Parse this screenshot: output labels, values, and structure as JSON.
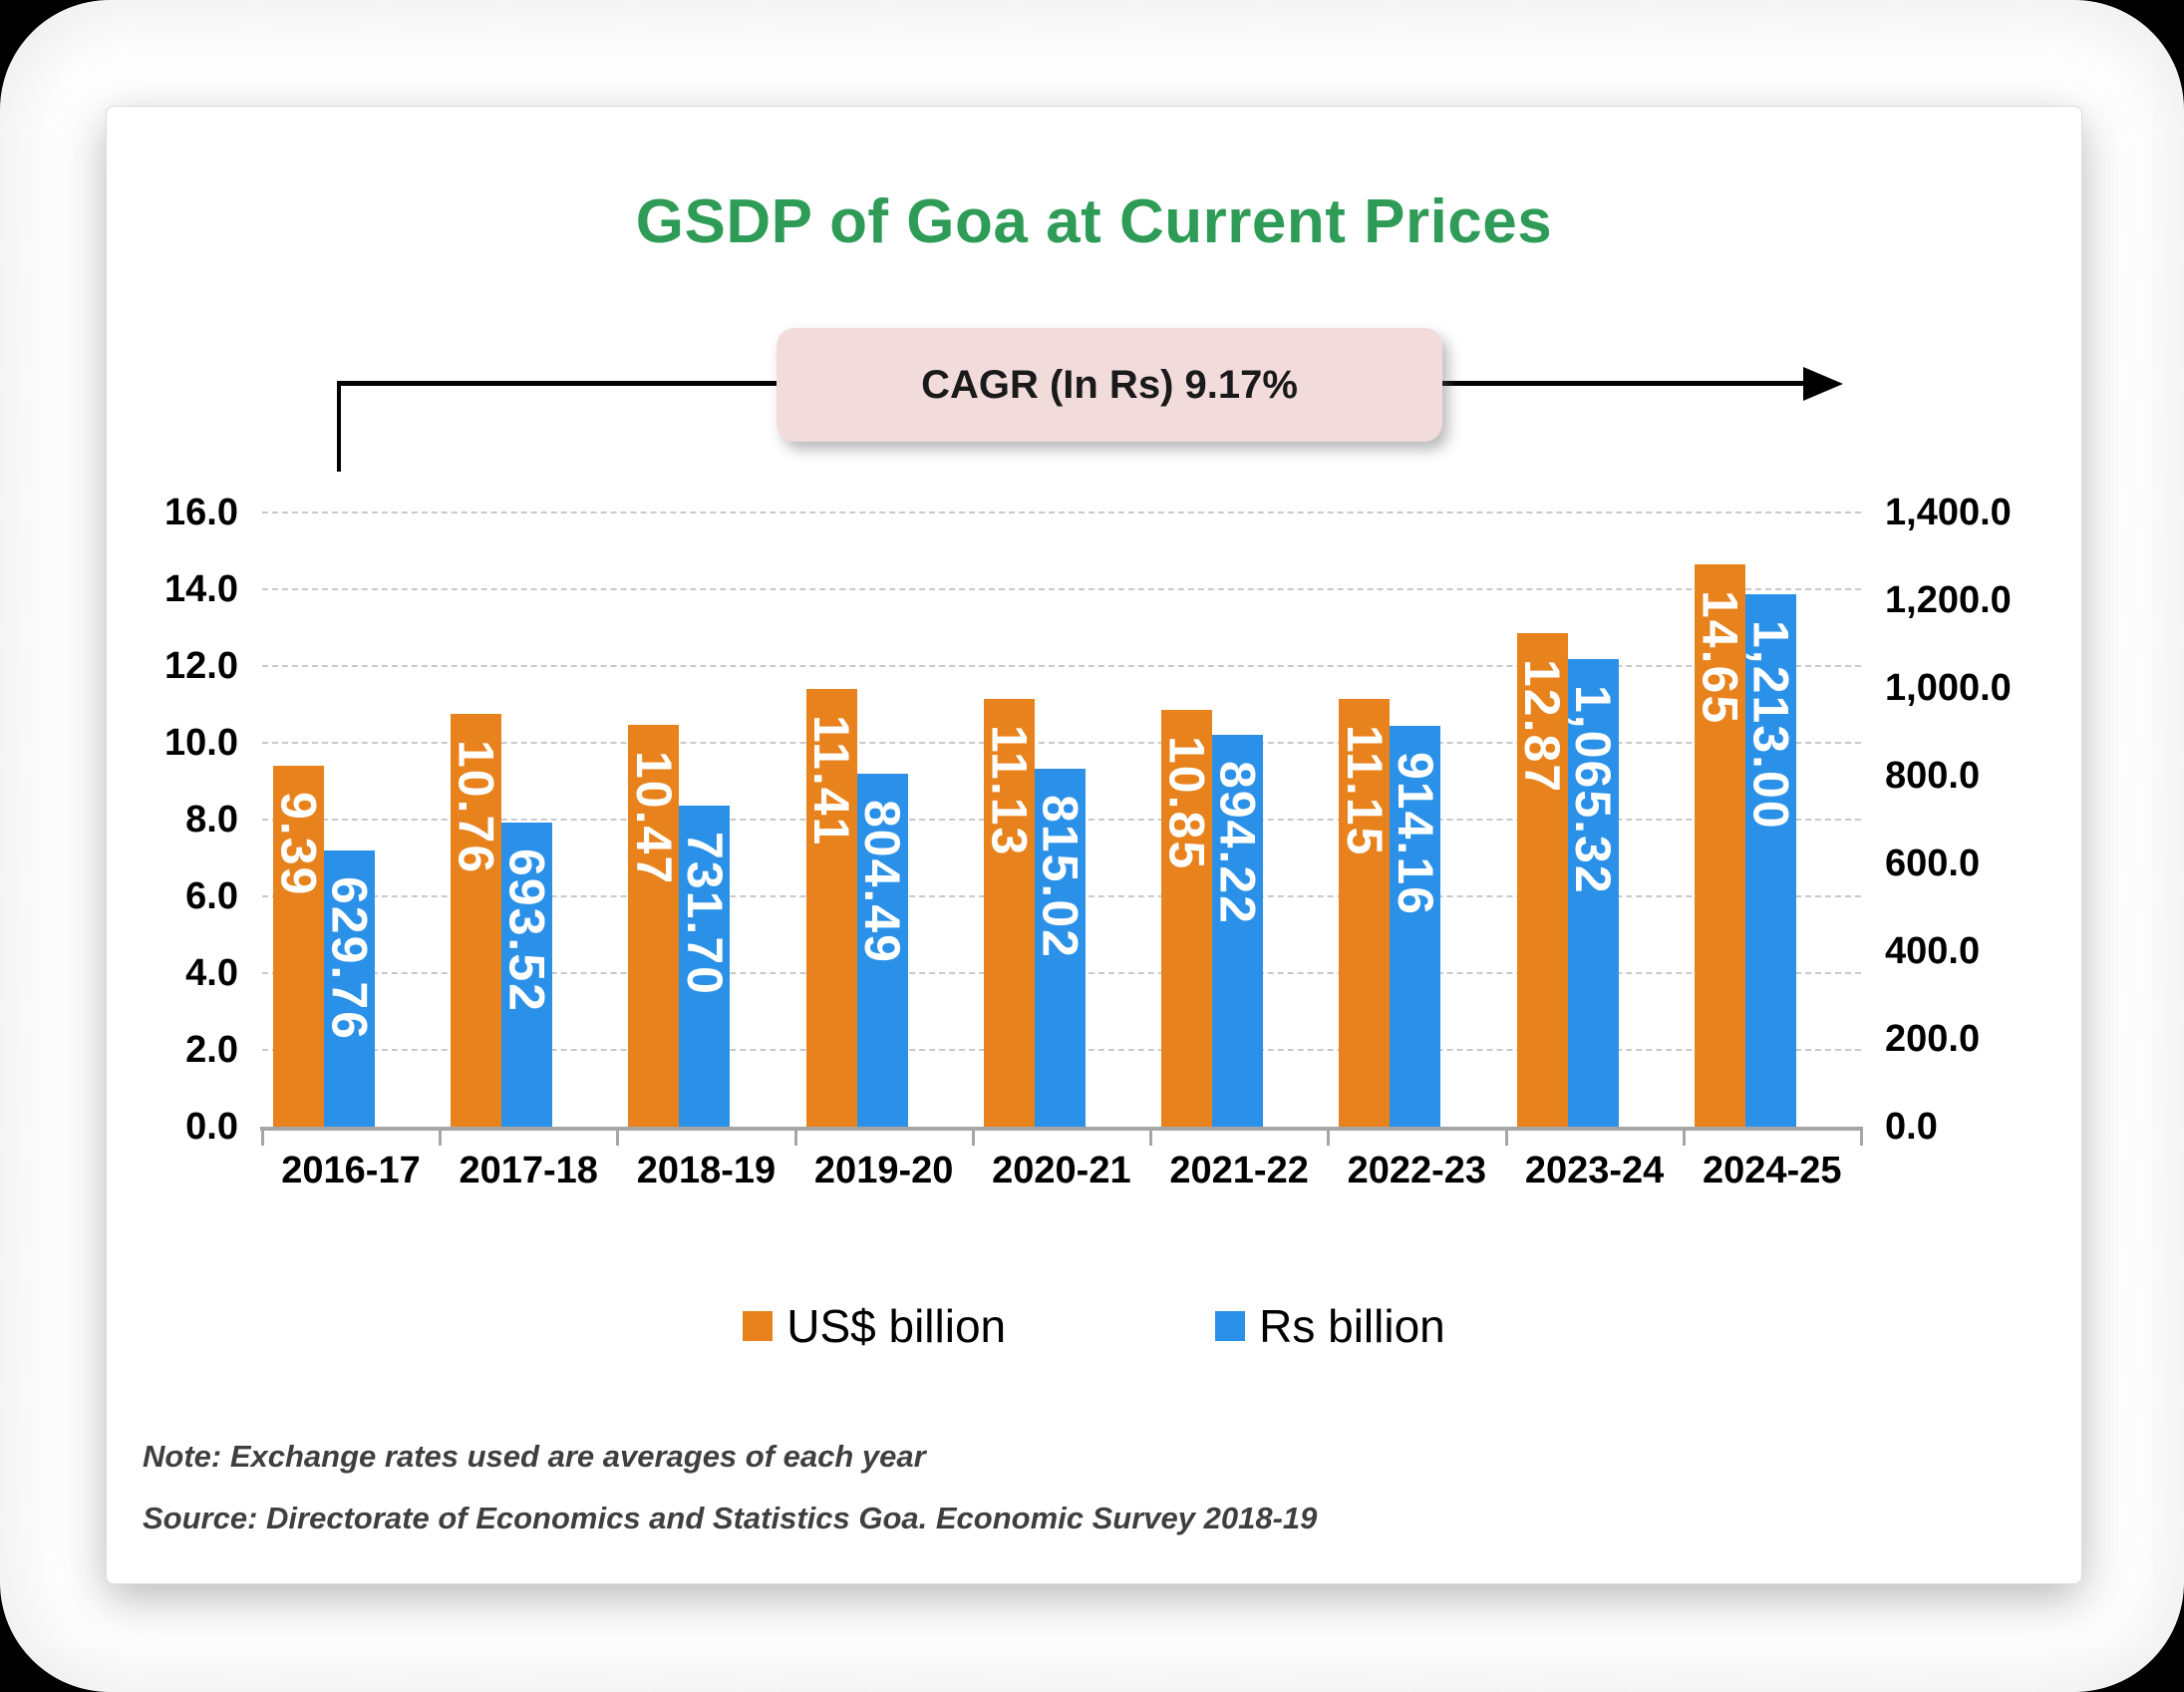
{
  "title": {
    "text": "GSDP of Goa at Current Prices",
    "color": "#2E9B57"
  },
  "annotation": {
    "cagr_label": "CAGR (In Rs) 9.17%",
    "box_color": "#F2DCDB"
  },
  "chart_data": {
    "type": "bar",
    "title": "GSDP of Goa at Current Prices",
    "categories": [
      "2016-17",
      "2017-18",
      "2018-19",
      "2019-20",
      "2020-21",
      "2021-22",
      "2022-23",
      "2023-24",
      "2024-25"
    ],
    "series": [
      {
        "name": "US$ billion",
        "axis": "left",
        "color": "#E8821D",
        "values": [
          9.39,
          10.76,
          10.47,
          11.41,
          11.13,
          10.85,
          11.15,
          12.87,
          14.65
        ],
        "labels": [
          "9.39",
          "10.76",
          "10.47",
          "11.41",
          "11.13",
          "10.85",
          "11.15",
          "12.87",
          "14.65"
        ]
      },
      {
        "name": "Rs billion",
        "axis": "right",
        "color": "#2B91E8",
        "values": [
          629.76,
          693.52,
          731.7,
          804.49,
          815.02,
          894.22,
          914.16,
          1065.32,
          1213.0
        ],
        "labels": [
          "629.76",
          "693.52",
          "731.70",
          "804.49",
          "815.02",
          "894.22",
          "914.16",
          "1,065.32",
          "1,213.00"
        ]
      }
    ],
    "left_axis": {
      "min": 0,
      "max": 16,
      "tick_labels": [
        "0.0",
        "2.0",
        "4.0",
        "6.0",
        "8.0",
        "10.0",
        "12.0",
        "14.0",
        "16.0"
      ]
    },
    "right_axis": {
      "min": 0,
      "max": 1400,
      "tick_labels": [
        "0.0",
        "200.0",
        "400.0",
        "600.0",
        "800.0",
        "1,000.0",
        "1,200.0",
        "1,400.0"
      ]
    },
    "grid": true,
    "legend_position": "bottom",
    "cagr_annotation": "CAGR (In Rs) 9.17%"
  },
  "legend": [
    {
      "label": "US$ billion",
      "color": "#E8821D"
    },
    {
      "label": "Rs billion",
      "color": "#2B91E8"
    }
  ],
  "notes": {
    "note": "Note: Exchange rates used are averages of each year",
    "source": "Source: Directorate of Economics and Statistics Goa. Economic Survey 2018-19"
  }
}
